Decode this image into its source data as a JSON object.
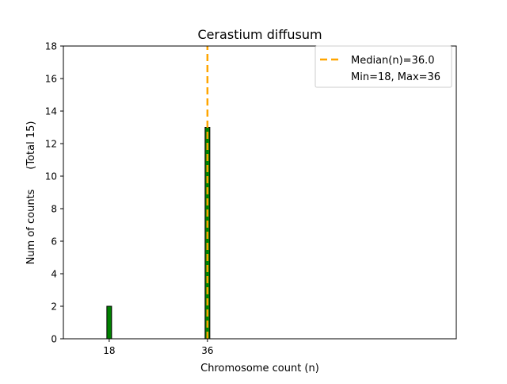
{
  "chart_data": {
    "type": "bar",
    "title": "Cerastium diffusum",
    "xlabel": "Chromosome count (n)",
    "ylabel": "Num of counts      (Total 15)",
    "x": [
      18,
      36
    ],
    "values": [
      2,
      13
    ],
    "xticks": [
      "18",
      "36"
    ],
    "yticks": [
      "0",
      "2",
      "4",
      "6",
      "8",
      "10",
      "12",
      "14",
      "16",
      "18"
    ],
    "ylim": [
      0,
      18
    ],
    "xlim": [
      9.6,
      81.6
    ],
    "bar_color": "#008000",
    "bar_edge_color": "#000000",
    "median": 36.0,
    "median_color": "#ffa500",
    "grid": false,
    "legend": {
      "placement": "top-right",
      "entries": [
        "Median(n)=36.0",
        "Min=18, Max=36"
      ]
    }
  }
}
